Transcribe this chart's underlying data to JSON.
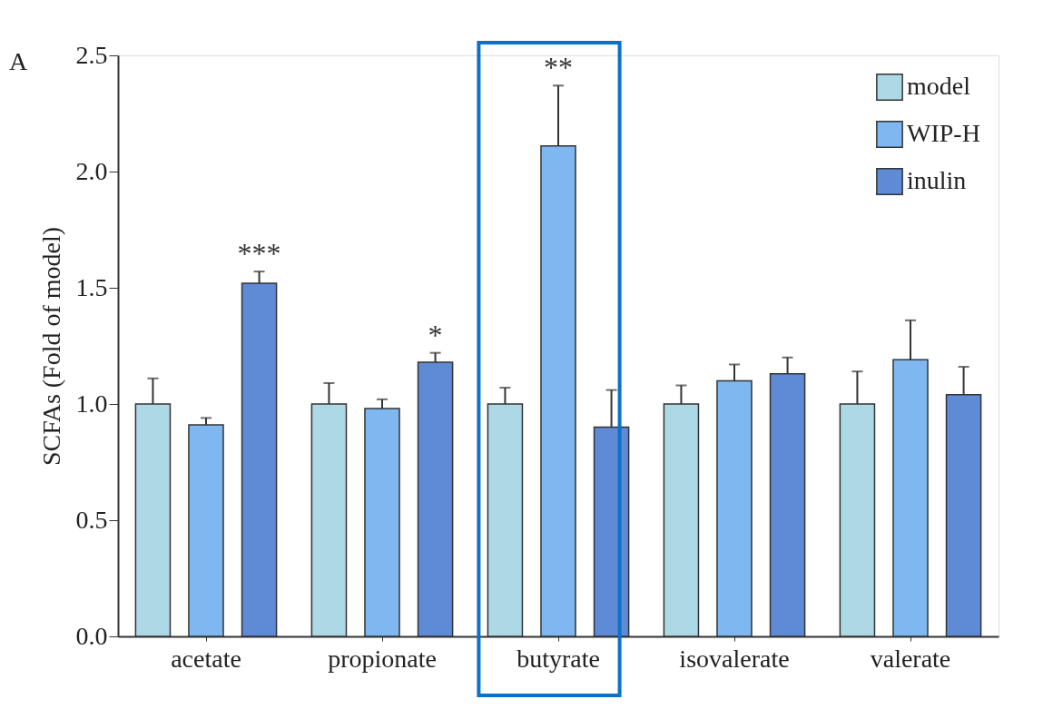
{
  "chart_data": {
    "type": "bar",
    "ylabel": "SCFAs (Fold of model)",
    "categories": [
      "acetate",
      "propionate",
      "butyrate",
      "isovalerate",
      "valerate"
    ],
    "series": [
      {
        "name": "model",
        "color": "#add8e6",
        "values": [
          1.0,
          1.0,
          1.0,
          1.0,
          1.0
        ],
        "errors": [
          [
            1.0,
            1.11
          ],
          [
            1.0,
            1.09
          ],
          [
            1.0,
            1.07
          ],
          [
            1.0,
            1.08
          ],
          [
            1.0,
            1.14
          ]
        ]
      },
      {
        "name": "WIP-H",
        "color": "#7fb8f0",
        "values": [
          0.91,
          0.98,
          2.11,
          1.1,
          1.19
        ],
        "errors": [
          [
            0.91,
            0.94
          ],
          [
            0.98,
            1.02
          ],
          [
            2.11,
            2.37
          ],
          [
            1.1,
            1.17
          ],
          [
            1.19,
            1.36
          ]
        ]
      },
      {
        "name": "inulin",
        "color": "#5f8ad6",
        "values": [
          1.52,
          1.18,
          0.9,
          1.13,
          1.04
        ],
        "errors": [
          [
            1.52,
            1.57
          ],
          [
            1.18,
            1.22
          ],
          [
            0.9,
            1.06
          ],
          [
            1.13,
            1.2
          ],
          [
            1.04,
            1.16
          ]
        ]
      }
    ],
    "ylim": [
      0,
      2.5
    ],
    "yticks": [
      {
        "value": 0,
        "label": "0.0"
      },
      {
        "value": 0.5,
        "label": "0.5"
      },
      {
        "value": 1,
        "label": "1.0"
      },
      {
        "value": 1.5,
        "label": "1.5"
      },
      {
        "value": 2,
        "label": "2.0"
      },
      {
        "value": 2.5,
        "label": "2.5"
      }
    ],
    "grid": false,
    "legend": "top right",
    "annotations": [
      "A",
      "***",
      "*",
      "**"
    ]
  }
}
